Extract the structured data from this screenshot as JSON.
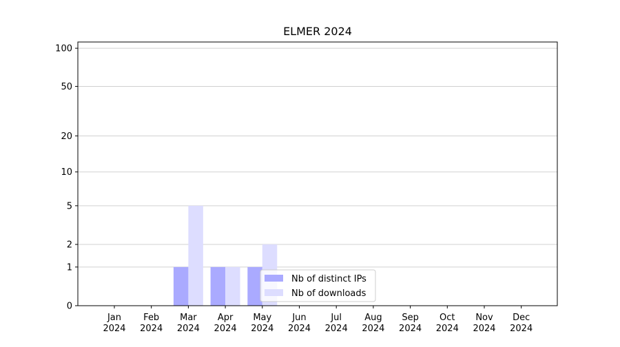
{
  "chart_data": {
    "type": "bar",
    "title": "ELMER 2024",
    "categories": [
      "Jan 2024",
      "Feb 2024",
      "Mar 2024",
      "Apr 2024",
      "May 2024",
      "Jun 2024",
      "Jul 2024",
      "Aug 2024",
      "Sep 2024",
      "Oct 2024",
      "Nov 2024",
      "Dec 2024"
    ],
    "series": [
      {
        "name": "Nb of distinct IPs",
        "color": "#aaaaff",
        "values": [
          0,
          0,
          1,
          1,
          1,
          0,
          0,
          0,
          0,
          0,
          0,
          0
        ]
      },
      {
        "name": "Nb of downloads",
        "color": "#ddddff",
        "values": [
          0,
          0,
          5,
          1,
          2,
          0,
          0,
          0,
          0,
          0,
          0,
          0
        ]
      }
    ],
    "yscale": "symlog",
    "ylim": [
      0,
      112
    ],
    "yticks": [
      0,
      1,
      2,
      5,
      10,
      20,
      50,
      100
    ],
    "grid": true,
    "legend": "lower center"
  }
}
